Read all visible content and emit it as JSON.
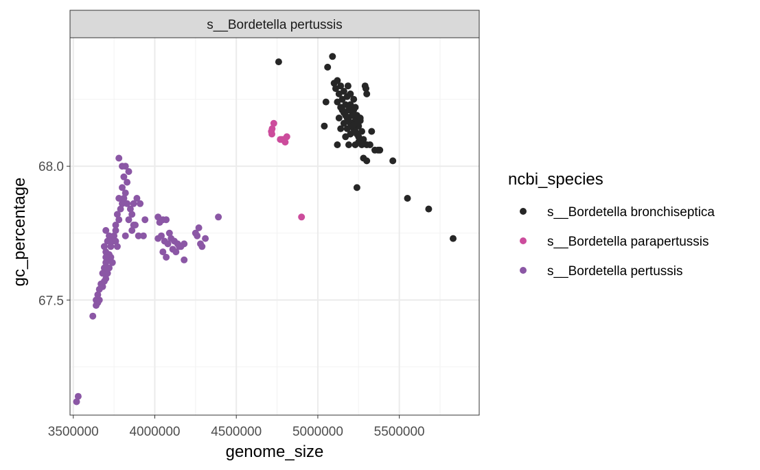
{
  "chart_data": {
    "type": "scatter",
    "facet_title": "s__Bordetella pertussis",
    "xlabel": "genome_size",
    "ylabel": "gc_percentage",
    "xlim": [
      3480000,
      5990000
    ],
    "ylim": [
      67.07,
      68.48
    ],
    "x_ticks": [
      3500000,
      4000000,
      4500000,
      5000000,
      5500000
    ],
    "x_tick_labels": [
      "3500000",
      "4000000",
      "4500000",
      "5000000",
      "5500000"
    ],
    "y_ticks": [
      67.5,
      68.0
    ],
    "y_tick_labels": [
      "67.5",
      "68.0"
    ],
    "legend": {
      "title": "ncbi_species",
      "entries": [
        {
          "label": "s__Bordetella bronchiseptica",
          "color": "#262626"
        },
        {
          "label": "s__Bordetella parapertussis",
          "color": "#cc4c9c"
        },
        {
          "label": "s__Bordetella pertussis",
          "color": "#8b57a5"
        }
      ]
    },
    "series": [
      {
        "name": "s__Bordetella bronchiseptica",
        "color": "#262626",
        "points": [
          [
            4760000,
            68.39
          ],
          [
            5090000,
            68.41
          ],
          [
            5060000,
            68.37
          ],
          [
            5050000,
            68.24
          ],
          [
            5040000,
            68.15
          ],
          [
            5120000,
            68.08
          ],
          [
            5100000,
            68.31
          ],
          [
            5120000,
            68.32
          ],
          [
            5140000,
            68.3
          ],
          [
            5160000,
            68.28
          ],
          [
            5180000,
            68.26
          ],
          [
            5110000,
            68.29
          ],
          [
            5130000,
            68.27
          ],
          [
            5150000,
            68.25
          ],
          [
            5170000,
            68.23
          ],
          [
            5190000,
            68.21
          ],
          [
            5210000,
            68.19
          ],
          [
            5230000,
            68.17
          ],
          [
            5250000,
            68.15
          ],
          [
            5270000,
            68.13
          ],
          [
            5120000,
            68.24
          ],
          [
            5140000,
            68.22
          ],
          [
            5160000,
            68.2
          ],
          [
            5180000,
            68.18
          ],
          [
            5200000,
            68.16
          ],
          [
            5220000,
            68.14
          ],
          [
            5240000,
            68.12
          ],
          [
            5150000,
            68.21
          ],
          [
            5170000,
            68.19
          ],
          [
            5190000,
            68.17
          ],
          [
            5210000,
            68.15
          ],
          [
            5230000,
            68.13
          ],
          [
            5250000,
            68.11
          ],
          [
            5280000,
            68.1
          ],
          [
            5200000,
            68.23
          ],
          [
            5220000,
            68.21
          ],
          [
            5240000,
            68.19
          ],
          [
            5260000,
            68.17
          ],
          [
            5130000,
            68.18
          ],
          [
            5160000,
            68.16
          ],
          [
            5180000,
            68.14
          ],
          [
            5200000,
            68.12
          ],
          [
            5290000,
            68.3
          ],
          [
            5295000,
            68.29
          ],
          [
            5300000,
            68.27
          ],
          [
            5220000,
            68.25
          ],
          [
            5250000,
            68.09
          ],
          [
            5230000,
            68.08
          ],
          [
            5270000,
            68.08
          ],
          [
            5300000,
            68.08
          ],
          [
            5320000,
            68.08
          ],
          [
            5330000,
            68.13
          ],
          [
            5350000,
            68.06
          ],
          [
            5370000,
            68.06
          ],
          [
            5380000,
            68.06
          ],
          [
            5280000,
            68.03
          ],
          [
            5300000,
            68.02
          ],
          [
            5460000,
            68.02
          ],
          [
            5240000,
            67.92
          ],
          [
            5550000,
            67.88
          ],
          [
            5680000,
            67.84
          ],
          [
            5830000,
            67.73
          ],
          [
            5260000,
            68.18
          ],
          [
            5200000,
            68.27
          ],
          [
            5170000,
            68.11
          ],
          [
            5140000,
            68.14
          ],
          [
            5185000,
            68.3
          ],
          [
            5230000,
            68.22
          ],
          [
            5190000,
            68.08
          ],
          [
            5245000,
            68.16
          ]
        ]
      },
      {
        "name": "s__Bordetella parapertussis",
        "color": "#cc4c9c",
        "points": [
          [
            4730000,
            68.16
          ],
          [
            4720000,
            68.14
          ],
          [
            4715000,
            68.13
          ],
          [
            4718000,
            68.12
          ],
          [
            4770000,
            68.1
          ],
          [
            4780000,
            68.1
          ],
          [
            4800000,
            68.09
          ],
          [
            4810000,
            68.11
          ],
          [
            4790000,
            68.1
          ],
          [
            4900000,
            67.81
          ]
        ]
      },
      {
        "name": "s__Bordetella pertussis",
        "color": "#8b57a5",
        "points": [
          [
            3520000,
            67.12
          ],
          [
            3530000,
            67.14
          ],
          [
            3620000,
            67.44
          ],
          [
            3640000,
            67.48
          ],
          [
            3650000,
            67.49
          ],
          [
            3640000,
            67.5
          ],
          [
            3660000,
            67.5
          ],
          [
            3650000,
            67.52
          ],
          [
            3660000,
            67.54
          ],
          [
            3670000,
            67.56
          ],
          [
            3680000,
            67.55
          ],
          [
            3690000,
            67.57
          ],
          [
            3700000,
            67.58
          ],
          [
            3710000,
            67.6
          ],
          [
            3690000,
            67.62
          ],
          [
            3700000,
            67.64
          ],
          [
            3720000,
            67.62
          ],
          [
            3710000,
            67.65
          ],
          [
            3720000,
            67.67
          ],
          [
            3700000,
            67.68
          ],
          [
            3730000,
            67.7
          ],
          [
            3710000,
            67.72
          ],
          [
            3740000,
            67.72
          ],
          [
            3720000,
            67.74
          ],
          [
            3700000,
            67.76
          ],
          [
            3750000,
            67.74
          ],
          [
            3760000,
            67.72
          ],
          [
            3770000,
            67.7
          ],
          [
            3730000,
            67.66
          ],
          [
            3680000,
            67.6
          ],
          [
            3760000,
            67.78
          ],
          [
            3780000,
            67.8
          ],
          [
            3770000,
            67.82
          ],
          [
            3790000,
            67.84
          ],
          [
            3800000,
            67.86
          ],
          [
            3780000,
            67.88
          ],
          [
            3810000,
            67.88
          ],
          [
            3820000,
            67.9
          ],
          [
            3800000,
            67.92
          ],
          [
            3830000,
            67.94
          ],
          [
            3810000,
            67.96
          ],
          [
            3840000,
            67.98
          ],
          [
            3820000,
            68.0
          ],
          [
            3800000,
            68.0
          ],
          [
            3780000,
            68.03
          ],
          [
            3830000,
            67.86
          ],
          [
            3850000,
            67.84
          ],
          [
            3860000,
            67.82
          ],
          [
            3840000,
            67.8
          ],
          [
            3870000,
            67.78
          ],
          [
            3860000,
            67.76
          ],
          [
            3880000,
            67.78
          ],
          [
            3890000,
            67.88
          ],
          [
            3900000,
            67.74
          ],
          [
            3930000,
            67.74
          ],
          [
            3940000,
            67.8
          ],
          [
            3910000,
            67.86
          ],
          [
            3870000,
            67.86
          ],
          [
            3820000,
            67.74
          ],
          [
            3760000,
            67.76
          ],
          [
            4020000,
            67.81
          ],
          [
            4030000,
            67.79
          ],
          [
            4050000,
            67.8
          ],
          [
            4070000,
            67.8
          ],
          [
            4020000,
            67.73
          ],
          [
            4040000,
            67.74
          ],
          [
            4060000,
            67.72
          ],
          [
            4080000,
            67.71
          ],
          [
            4100000,
            67.73
          ],
          [
            4120000,
            67.72
          ],
          [
            4140000,
            67.71
          ],
          [
            4160000,
            67.7
          ],
          [
            4180000,
            67.71
          ],
          [
            4110000,
            67.69
          ],
          [
            4130000,
            67.68
          ],
          [
            4150000,
            67.7
          ],
          [
            4050000,
            67.68
          ],
          [
            4070000,
            67.66
          ],
          [
            4180000,
            67.65
          ],
          [
            4090000,
            67.75
          ],
          [
            4250000,
            67.75
          ],
          [
            4270000,
            67.77
          ],
          [
            4260000,
            67.74
          ],
          [
            4280000,
            67.71
          ],
          [
            4290000,
            67.7
          ],
          [
            4310000,
            67.73
          ],
          [
            4390000,
            67.81
          ],
          [
            3690000,
            67.7
          ],
          [
            3700000,
            67.66
          ],
          [
            3740000,
            67.64
          ]
        ]
      }
    ]
  }
}
